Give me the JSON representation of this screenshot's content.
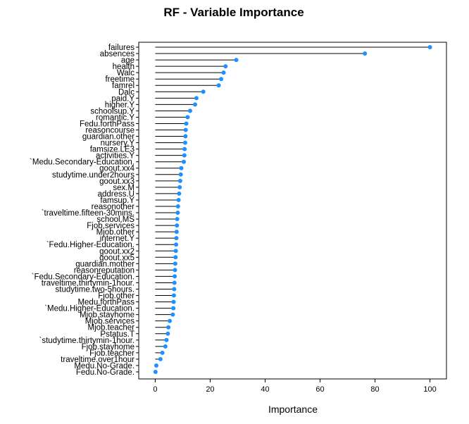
{
  "chart_data": {
    "type": "dotplot",
    "title": "RF - Variable Importance",
    "xlabel": "Importance",
    "xlim": [
      -6,
      106
    ],
    "xticks": [
      0,
      20,
      40,
      60,
      80,
      100
    ],
    "point_color": "#1e90ff",
    "categories": [
      "failures",
      "absences",
      "age",
      "health",
      "Walc",
      "freetime",
      "famrel",
      "Dalc",
      "paid.Y",
      "higher.Y",
      "schoolsup.Y",
      "romantic.Y",
      "Fedu.forthPass",
      "reasoncourse",
      "guardian.other",
      "nursery.Y",
      "famsize.LE3",
      "activities.Y",
      "`Medu.Secondary-Education.",
      "goout.xx4",
      "studytime.under2hours",
      "goout.xx3",
      "sex.M",
      "address.U",
      "famsup.Y",
      "reasonother",
      "`traveltime.fifteen-30mins.",
      "school.MS",
      "Fjob.services",
      "Mjob.other",
      "internet.Y",
      "`Fedu.Higher-Education.",
      "goout.xx2",
      "goout.xx5",
      "guardian.mother",
      "reasonreputation",
      "`Fedu.Secondary-Education.",
      "traveltime.thirtymin-1hour.",
      "studytime.two-5hours.",
      "Fjob.other",
      "Medu.forthPass",
      "`Medu.Higher-Education.",
      "Mjob.stayhome",
      "Mjob.services",
      "Mjob.teacher",
      "Pstatus.T",
      "`studytime.thirtymin-1hour.",
      "Fjob.stayhome",
      "Fjob.teacher",
      "traveltime.over1hour",
      "Medu.No-Grade.",
      "Fedu.No-Grade."
    ],
    "values": [
      100,
      76.3,
      29.5,
      25.6,
      24.9,
      24.0,
      23.1,
      17.5,
      15.0,
      14.5,
      12.7,
      11.8,
      11.3,
      11.1,
      11.0,
      10.9,
      10.7,
      10.6,
      10.4,
      9.5,
      9.3,
      9.1,
      8.9,
      8.7,
      8.5,
      8.3,
      8.2,
      8.0,
      7.9,
      7.8,
      7.7,
      7.6,
      7.5,
      7.4,
      7.3,
      7.2,
      7.1,
      7.0,
      6.9,
      6.8,
      6.7,
      6.6,
      6.4,
      5.3,
      4.8,
      4.6,
      4.1,
      3.7,
      2.6,
      1.9,
      0.4,
      0.1
    ]
  }
}
